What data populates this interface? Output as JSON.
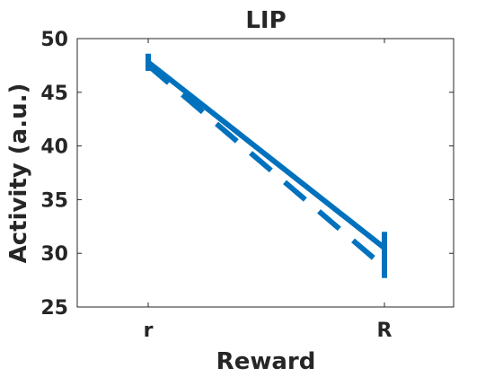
{
  "chart_data": {
    "type": "line",
    "title": "LIP",
    "xlabel": "Reward",
    "ylabel": "Activity (a.u.)",
    "categories": [
      "r",
      "R"
    ],
    "ylim": [
      25,
      50
    ],
    "yticks": [
      25,
      30,
      35,
      40,
      45,
      50
    ],
    "grid": false,
    "legend": "none",
    "series": [
      {
        "style": "solid",
        "color": "#0072BD",
        "values": [
          47.8,
          30.5
        ],
        "err": [
          0.8,
          1.5
        ]
      },
      {
        "style": "dashed",
        "color": "#0072BD",
        "values": [
          47.5,
          28.7
        ],
        "err": [
          0.5,
          1.0
        ]
      }
    ]
  }
}
